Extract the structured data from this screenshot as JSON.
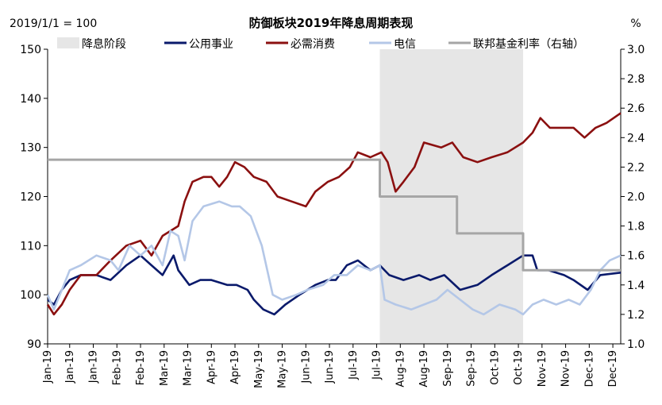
{
  "chart_data": {
    "type": "line",
    "title": "防御板块2019年降息周期表现",
    "left_axis_note": "2019/1/1 = 100",
    "right_axis_unit": "%",
    "ylim_left": [
      90,
      150
    ],
    "yticks_left": [
      90,
      100,
      110,
      120,
      130,
      140,
      150
    ],
    "ylim_right": [
      1.0,
      3.0
    ],
    "yticks_right": [
      "1.0",
      "1.2",
      "1.4",
      "1.6",
      "1.8",
      "2.0",
      "2.2",
      "2.4",
      "2.6",
      "2.8",
      "3.0"
    ],
    "xlim": [
      "2019-01-01",
      "2019-12-31"
    ],
    "x_tick_dates": [
      "2019-01-01",
      "2019-01-15",
      "2019-01-30",
      "2019-02-14",
      "2019-03-01",
      "2019-03-16",
      "2019-03-31",
      "2019-04-15",
      "2019-04-30",
      "2019-05-15",
      "2019-05-30",
      "2019-06-14",
      "2019-06-29",
      "2019-07-14",
      "2019-07-29",
      "2019-08-13",
      "2019-08-28",
      "2019-09-12",
      "2019-09-27",
      "2019-10-12",
      "2019-10-27",
      "2019-11-11",
      "2019-11-26",
      "2019-12-11",
      "2019-12-26"
    ],
    "x_tick_labels": [
      "Jan-19",
      "Jan-19",
      "Jan-19",
      "Feb-19",
      "Feb-19",
      "Mar-19",
      "Mar-19",
      "Apr-19",
      "Apr-19",
      "May-19",
      "May-19",
      "Jun-19",
      "Jun-19",
      "Jul-19",
      "Jul-19",
      "Aug-19",
      "Aug-19",
      "Sep-19",
      "Sep-19",
      "Oct-19",
      "Oct-19",
      "Nov-19",
      "Nov-19",
      "Dec-19",
      "Dec-19"
    ],
    "shaded_period": {
      "name": "降息阶段",
      "start": "2019-07-31",
      "end": "2019-10-30",
      "color": "#e6e6e6"
    },
    "series": [
      {
        "name": "公用事业",
        "axis": "left",
        "color": "#0a1a6b",
        "points": [
          [
            "2019-01-01",
            99
          ],
          [
            "2019-01-05",
            98
          ],
          [
            "2019-01-10",
            101
          ],
          [
            "2019-01-15",
            103
          ],
          [
            "2019-01-22",
            104
          ],
          [
            "2019-02-01",
            104
          ],
          [
            "2019-02-10",
            103
          ],
          [
            "2019-02-20",
            106
          ],
          [
            "2019-03-01",
            108
          ],
          [
            "2019-03-08",
            106
          ],
          [
            "2019-03-15",
            104
          ],
          [
            "2019-03-22",
            108
          ],
          [
            "2019-03-25",
            105
          ],
          [
            "2019-04-01",
            102
          ],
          [
            "2019-04-08",
            103
          ],
          [
            "2019-04-15",
            103
          ],
          [
            "2019-04-25",
            102
          ],
          [
            "2019-05-01",
            102
          ],
          [
            "2019-05-08",
            101
          ],
          [
            "2019-05-12",
            99
          ],
          [
            "2019-05-18",
            97
          ],
          [
            "2019-05-25",
            96
          ],
          [
            "2019-06-01",
            98
          ],
          [
            "2019-06-10",
            100
          ],
          [
            "2019-06-20",
            102
          ],
          [
            "2019-06-28",
            103
          ],
          [
            "2019-07-03",
            103
          ],
          [
            "2019-07-10",
            106
          ],
          [
            "2019-07-17",
            107
          ],
          [
            "2019-07-25",
            105
          ],
          [
            "2019-07-31",
            106
          ],
          [
            "2019-08-06",
            104
          ],
          [
            "2019-08-15",
            103
          ],
          [
            "2019-08-25",
            104
          ],
          [
            "2019-09-01",
            103
          ],
          [
            "2019-09-10",
            104
          ],
          [
            "2019-09-20",
            101
          ],
          [
            "2019-10-01",
            102
          ],
          [
            "2019-10-10",
            104
          ],
          [
            "2019-10-20",
            106
          ],
          [
            "2019-10-30",
            108
          ],
          [
            "2019-11-05",
            108
          ],
          [
            "2019-11-08",
            105
          ],
          [
            "2019-11-15",
            105
          ],
          [
            "2019-11-25",
            104
          ],
          [
            "2019-12-01",
            103
          ],
          [
            "2019-12-10",
            101
          ],
          [
            "2019-12-18",
            104
          ],
          [
            "2019-12-31",
            104.5
          ]
        ]
      },
      {
        "name": "必需消费",
        "axis": "left",
        "color": "#8b1010",
        "points": [
          [
            "2019-01-01",
            98
          ],
          [
            "2019-01-05",
            96
          ],
          [
            "2019-01-10",
            98
          ],
          [
            "2019-01-15",
            101
          ],
          [
            "2019-01-22",
            104
          ],
          [
            "2019-02-01",
            104
          ],
          [
            "2019-02-10",
            107
          ],
          [
            "2019-02-20",
            110
          ],
          [
            "2019-03-01",
            111
          ],
          [
            "2019-03-08",
            108
          ],
          [
            "2019-03-15",
            112
          ],
          [
            "2019-03-25",
            114
          ],
          [
            "2019-03-29",
            119
          ],
          [
            "2019-04-03",
            123
          ],
          [
            "2019-04-10",
            124
          ],
          [
            "2019-04-15",
            124
          ],
          [
            "2019-04-20",
            122
          ],
          [
            "2019-04-25",
            124
          ],
          [
            "2019-04-30",
            127
          ],
          [
            "2019-05-06",
            126
          ],
          [
            "2019-05-12",
            124
          ],
          [
            "2019-05-20",
            123
          ],
          [
            "2019-05-27",
            120
          ],
          [
            "2019-06-05",
            119
          ],
          [
            "2019-06-14",
            118
          ],
          [
            "2019-06-20",
            121
          ],
          [
            "2019-06-28",
            123
          ],
          [
            "2019-07-05",
            124
          ],
          [
            "2019-07-12",
            126
          ],
          [
            "2019-07-17",
            129
          ],
          [
            "2019-07-25",
            128
          ],
          [
            "2019-08-01",
            129
          ],
          [
            "2019-08-05",
            127
          ],
          [
            "2019-08-10",
            121
          ],
          [
            "2019-08-15",
            123
          ],
          [
            "2019-08-22",
            126
          ],
          [
            "2019-08-28",
            131
          ],
          [
            "2019-09-08",
            130
          ],
          [
            "2019-09-15",
            131
          ],
          [
            "2019-09-22",
            128
          ],
          [
            "2019-10-01",
            127
          ],
          [
            "2019-10-10",
            128
          ],
          [
            "2019-10-20",
            129
          ],
          [
            "2019-10-30",
            131
          ],
          [
            "2019-11-05",
            133
          ],
          [
            "2019-11-10",
            136
          ],
          [
            "2019-11-16",
            134
          ],
          [
            "2019-11-25",
            134
          ],
          [
            "2019-12-01",
            134
          ],
          [
            "2019-12-08",
            132
          ],
          [
            "2019-12-15",
            134
          ],
          [
            "2019-12-22",
            135
          ],
          [
            "2019-12-31",
            137
          ]
        ]
      },
      {
        "name": "电信",
        "axis": "left",
        "color": "#b4c7e7",
        "points": [
          [
            "2019-01-01",
            100
          ],
          [
            "2019-01-05",
            97
          ],
          [
            "2019-01-10",
            101
          ],
          [
            "2019-01-15",
            105
          ],
          [
            "2019-01-22",
            106
          ],
          [
            "2019-02-01",
            108
          ],
          [
            "2019-02-10",
            107
          ],
          [
            "2019-02-15",
            105
          ],
          [
            "2019-02-22",
            110
          ],
          [
            "2019-03-01",
            108
          ],
          [
            "2019-03-08",
            110
          ],
          [
            "2019-03-15",
            106
          ],
          [
            "2019-03-20",
            113
          ],
          [
            "2019-03-25",
            112
          ],
          [
            "2019-03-29",
            107
          ],
          [
            "2019-04-03",
            115
          ],
          [
            "2019-04-10",
            118
          ],
          [
            "2019-04-20",
            119
          ],
          [
            "2019-04-28",
            118
          ],
          [
            "2019-05-03",
            118
          ],
          [
            "2019-05-10",
            116
          ],
          [
            "2019-05-17",
            110
          ],
          [
            "2019-05-24",
            100
          ],
          [
            "2019-05-30",
            99
          ],
          [
            "2019-06-08",
            100
          ],
          [
            "2019-06-15",
            101
          ],
          [
            "2019-06-25",
            102
          ],
          [
            "2019-07-02",
            104
          ],
          [
            "2019-07-10",
            104
          ],
          [
            "2019-07-17",
            106
          ],
          [
            "2019-07-25",
            105
          ],
          [
            "2019-07-31",
            106
          ],
          [
            "2019-08-03",
            99
          ],
          [
            "2019-08-10",
            98
          ],
          [
            "2019-08-20",
            97
          ],
          [
            "2019-08-28",
            98
          ],
          [
            "2019-09-05",
            99
          ],
          [
            "2019-09-12",
            101
          ],
          [
            "2019-09-20",
            99
          ],
          [
            "2019-09-28",
            97
          ],
          [
            "2019-10-05",
            96
          ],
          [
            "2019-10-15",
            98
          ],
          [
            "2019-10-25",
            97
          ],
          [
            "2019-10-30",
            96
          ],
          [
            "2019-11-05",
            98
          ],
          [
            "2019-11-12",
            99
          ],
          [
            "2019-11-20",
            98
          ],
          [
            "2019-11-28",
            99
          ],
          [
            "2019-12-05",
            98
          ],
          [
            "2019-12-12",
            101
          ],
          [
            "2019-12-18",
            105
          ],
          [
            "2019-12-24",
            107
          ],
          [
            "2019-12-31",
            108
          ]
        ]
      },
      {
        "name": "联邦基金利率（右轴）",
        "axis": "right",
        "color": "#a6a6a6",
        "step": true,
        "points": [
          [
            "2019-01-01",
            2.25
          ],
          [
            "2019-07-31",
            2.0
          ],
          [
            "2019-09-18",
            1.75
          ],
          [
            "2019-10-30",
            1.5
          ],
          [
            "2019-12-31",
            1.5
          ]
        ]
      }
    ]
  }
}
